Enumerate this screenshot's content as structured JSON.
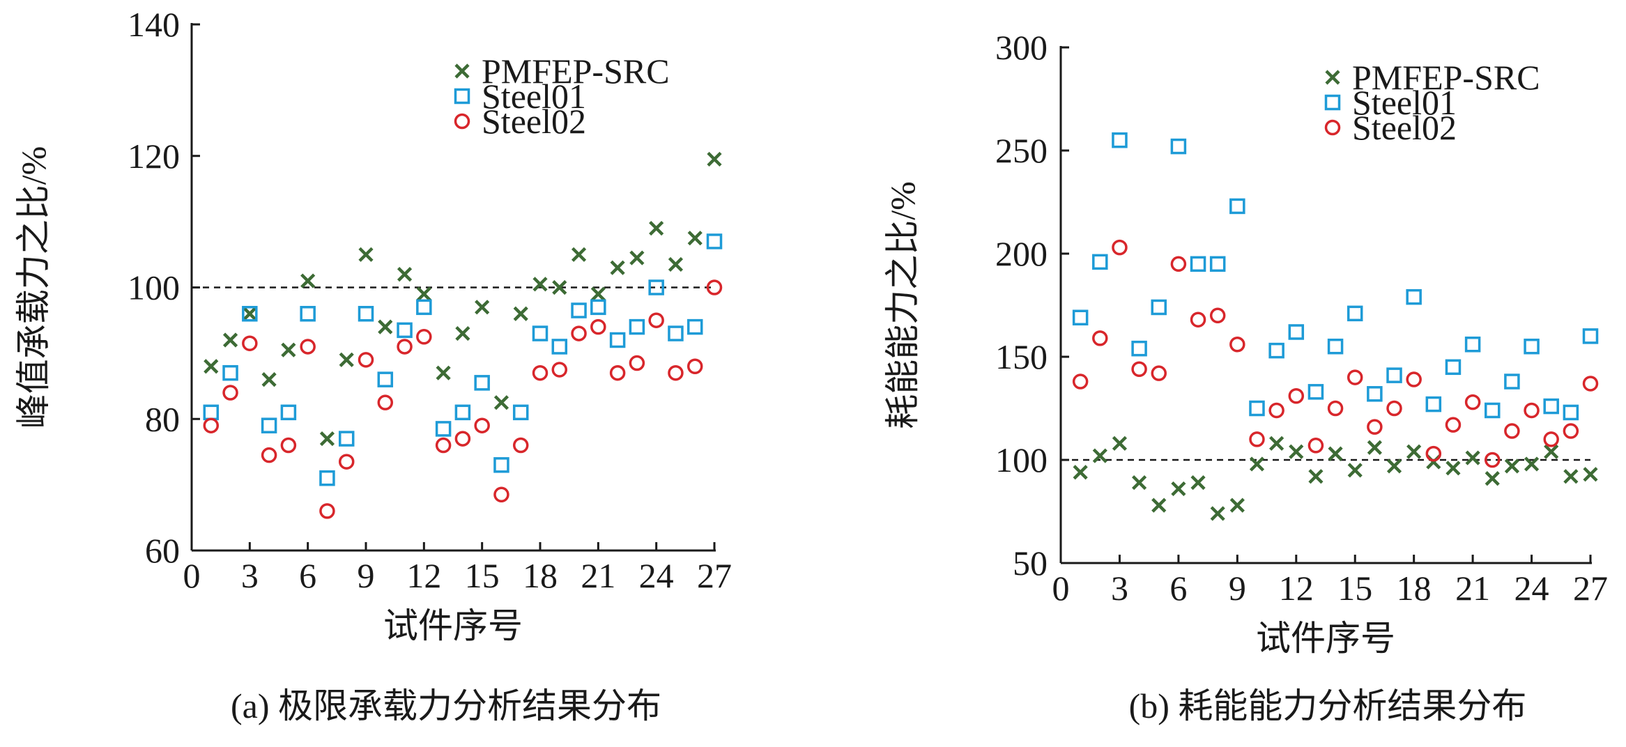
{
  "chart_data": [
    {
      "type": "scatter",
      "caption": "(a) 极限承载力分析结果分布",
      "xlabel": "试件序号",
      "ylabel": "峰值承载力之比/%",
      "xlim": [
        0,
        27
      ],
      "ylim": [
        60,
        140
      ],
      "xticks": [
        0,
        3,
        6,
        9,
        12,
        15,
        18,
        21,
        24,
        27
      ],
      "yticks": [
        60,
        80,
        100,
        120,
        140
      ],
      "reference_line": 100,
      "legend_position": "top-right",
      "x": [
        1,
        2,
        3,
        4,
        5,
        6,
        7,
        8,
        9,
        10,
        11,
        12,
        13,
        14,
        15,
        16,
        17,
        18,
        19,
        20,
        21,
        22,
        23,
        24,
        25,
        26,
        27
      ],
      "series": [
        {
          "name": "PMFEP-SRC",
          "marker": "x",
          "color": "#3d6b35",
          "values": [
            88,
            92,
            96,
            86,
            90.5,
            101,
            77,
            89,
            105,
            94,
            102,
            99,
            87,
            93,
            97,
            82.5,
            96,
            100.5,
            100,
            105,
            99,
            103,
            104.5,
            109,
            103.5,
            107.5,
            119.5
          ]
        },
        {
          "name": "Steel01",
          "marker": "square",
          "color": "#1e9bd7",
          "values": [
            81,
            87,
            96,
            79,
            81,
            96,
            71,
            77,
            96,
            86,
            93.5,
            97,
            78.5,
            81,
            85.5,
            73,
            81,
            93,
            91,
            96.5,
            97,
            92,
            94,
            100,
            93,
            94,
            107
          ]
        },
        {
          "name": "Steel02",
          "marker": "circle",
          "color": "#d8262b",
          "values": [
            79,
            84,
            91.5,
            74.5,
            76,
            91,
            66,
            73.5,
            89,
            82.5,
            91,
            92.5,
            76,
            77,
            79,
            68.5,
            76,
            87,
            87.5,
            93,
            94,
            87,
            88.5,
            95,
            87,
            88,
            100
          ]
        }
      ]
    },
    {
      "type": "scatter",
      "caption": "(b) 耗能能力分析结果分布",
      "xlabel": "试件序号",
      "ylabel": "耗能能力之比/%",
      "xlim": [
        0,
        27
      ],
      "ylim": [
        50,
        300
      ],
      "xticks": [
        0,
        3,
        6,
        9,
        12,
        15,
        18,
        21,
        24,
        27
      ],
      "yticks": [
        50,
        100,
        150,
        200,
        250,
        300
      ],
      "reference_line": 100,
      "legend_position": "top-right",
      "x": [
        1,
        2,
        3,
        4,
        5,
        6,
        7,
        8,
        9,
        10,
        11,
        12,
        13,
        14,
        15,
        16,
        17,
        18,
        19,
        20,
        21,
        22,
        23,
        24,
        25,
        26,
        27
      ],
      "series": [
        {
          "name": "PMFEP-SRC",
          "marker": "x",
          "color": "#3d6b35",
          "values": [
            94,
            102,
            108,
            89,
            78,
            86,
            89,
            74,
            78,
            98,
            108,
            104,
            92,
            103,
            95,
            106,
            97,
            104,
            99,
            96,
            101,
            91,
            97,
            98,
            104,
            92,
            93
          ]
        },
        {
          "name": "Steel01",
          "marker": "square",
          "color": "#1e9bd7",
          "values": [
            169,
            196,
            255,
            154,
            174,
            252,
            195,
            195,
            223,
            125,
            153,
            162,
            133,
            155,
            171,
            132,
            141,
            179,
            127,
            145,
            156,
            124,
            138,
            155,
            126,
            123,
            160
          ]
        },
        {
          "name": "Steel02",
          "marker": "circle",
          "color": "#d8262b",
          "values": [
            138,
            159,
            203,
            144,
            142,
            195,
            168,
            170,
            156,
            110,
            124,
            131,
            107,
            125,
            140,
            116,
            125,
            139,
            103,
            117,
            128,
            100,
            114,
            124,
            110,
            114,
            137
          ]
        }
      ]
    }
  ]
}
